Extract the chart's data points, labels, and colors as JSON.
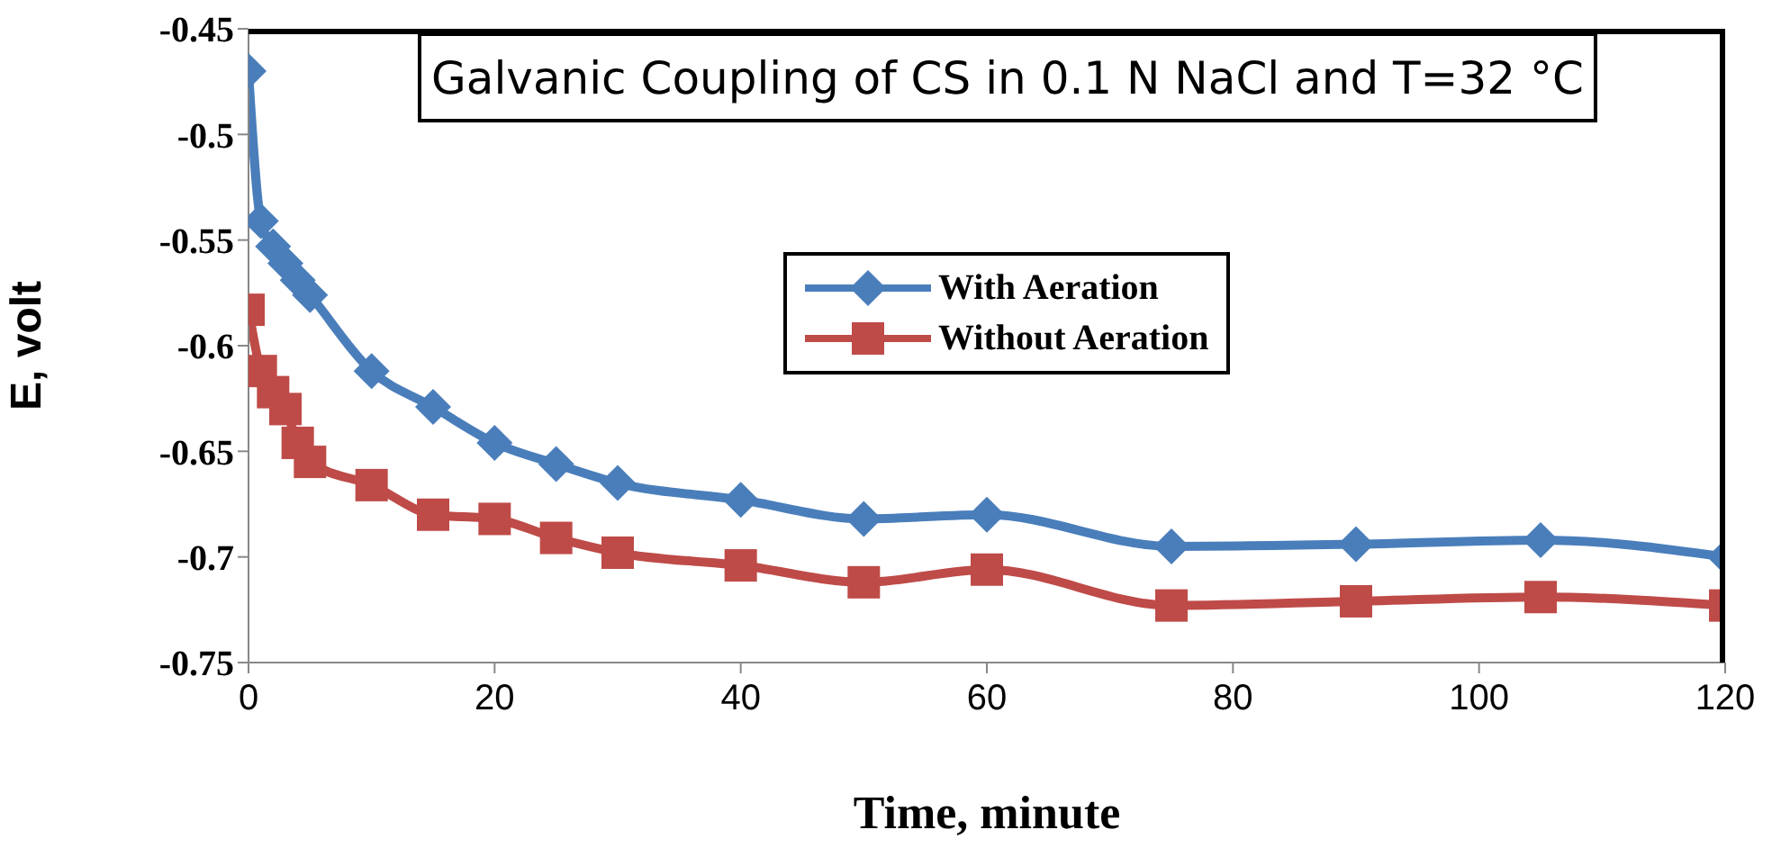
{
  "chart_data": {
    "type": "line",
    "title": "Galvanic Coupling of CS in 0.1 N NaCl and T=32 °C",
    "xlabel": "Time, minute",
    "ylabel": "E, volt",
    "x": [
      0,
      1,
      2,
      3,
      4,
      5,
      10,
      15,
      20,
      25,
      30,
      40,
      50,
      60,
      75,
      90,
      105,
      120
    ],
    "series": [
      {
        "name": "With Aeration",
        "color": "#4a7ebb",
        "marker": "diamond",
        "values": [
          -0.47,
          -0.541,
          -0.553,
          -0.561,
          -0.569,
          -0.576,
          -0.612,
          -0.629,
          -0.646,
          -0.656,
          -0.665,
          -0.673,
          -0.682,
          -0.68,
          -0.695,
          -0.694,
          -0.692,
          -0.7
        ]
      },
      {
        "name": "Without Aeration",
        "color": "#be4b48",
        "marker": "square",
        "values": [
          -0.583,
          -0.612,
          -0.622,
          -0.63,
          -0.646,
          -0.655,
          -0.666,
          -0.68,
          -0.682,
          -0.691,
          -0.698,
          -0.704,
          -0.712,
          -0.706,
          -0.723,
          -0.721,
          -0.719,
          -0.723
        ]
      }
    ],
    "xlim": [
      0,
      120
    ],
    "xticks": [
      0,
      20,
      40,
      60,
      80,
      100,
      120
    ],
    "ylim": [
      -0.75,
      -0.45
    ],
    "yticks": [
      -0.75,
      -0.7,
      -0.65,
      -0.6,
      -0.55,
      -0.5,
      -0.45
    ],
    "legend": "right",
    "grid": false
  }
}
